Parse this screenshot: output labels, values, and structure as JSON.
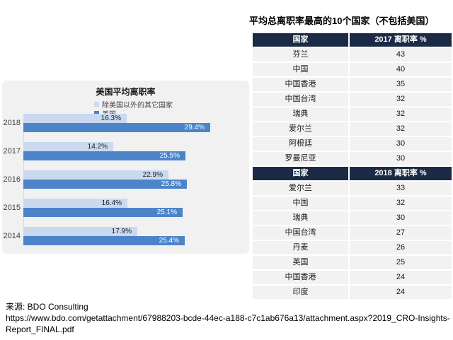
{
  "colors": {
    "panel_bg": "#f1f1f1",
    "bar_light": "#c9d9f0",
    "bar_dark": "#4d84c9",
    "table_header_bg": "#1b2a45",
    "table_row_bg": "#f2f2f2"
  },
  "right": {
    "title": "平均总离职率最高的10个国家（不包括美国）"
  },
  "source": {
    "label": "来源: BDO Consulting",
    "url": "https://www.bdo.com/getattachment/67988203-bcde-44ec-a188-c7c1ab676a13/attachment.aspx?2019_CRO-Insights-Report_FINAL.pdf"
  },
  "chart_data": [
    {
      "type": "bar",
      "orientation": "horizontal",
      "title": "美国平均离职率",
      "categories": [
        "2018",
        "2017",
        "2016",
        "2015",
        "2014"
      ],
      "series": [
        {
          "name": "除美国以外的其它国家",
          "color": "#c9d9f0",
          "values": [
            16.3,
            14.2,
            22.9,
            16.4,
            17.9
          ]
        },
        {
          "name": "美国",
          "color": "#4d84c9",
          "values": [
            29.4,
            25.5,
            25.8,
            25.1,
            25.4
          ]
        }
      ],
      "value_suffix": "%",
      "xlim": [
        0,
        33
      ],
      "grid": false,
      "legend_position": "top"
    },
    {
      "type": "table",
      "title": "平均总离职率最高的10个国家（不包括美国）",
      "columns": [
        "国家",
        "2017 离职率 %"
      ],
      "rows": [
        [
          "芬兰",
          "43"
        ],
        [
          "中国",
          "40"
        ],
        [
          "中国香港",
          "35"
        ],
        [
          "中国台湾",
          "32"
        ],
        [
          "瑞典",
          "32"
        ],
        [
          "爱尔兰",
          "32"
        ],
        [
          "阿根廷",
          "30"
        ],
        [
          "罗曼尼亚",
          "30"
        ]
      ]
    },
    {
      "type": "table",
      "columns": [
        "国家",
        "2018 离职率 %"
      ],
      "rows": [
        [
          "爱尔兰",
          "33"
        ],
        [
          "中国",
          "32"
        ],
        [
          "瑞典",
          "30"
        ],
        [
          "中国台湾",
          "27"
        ],
        [
          "丹麦",
          "26"
        ],
        [
          "英国",
          "25"
        ],
        [
          "中国香港",
          "24"
        ],
        [
          "印度",
          "24"
        ]
      ]
    }
  ]
}
